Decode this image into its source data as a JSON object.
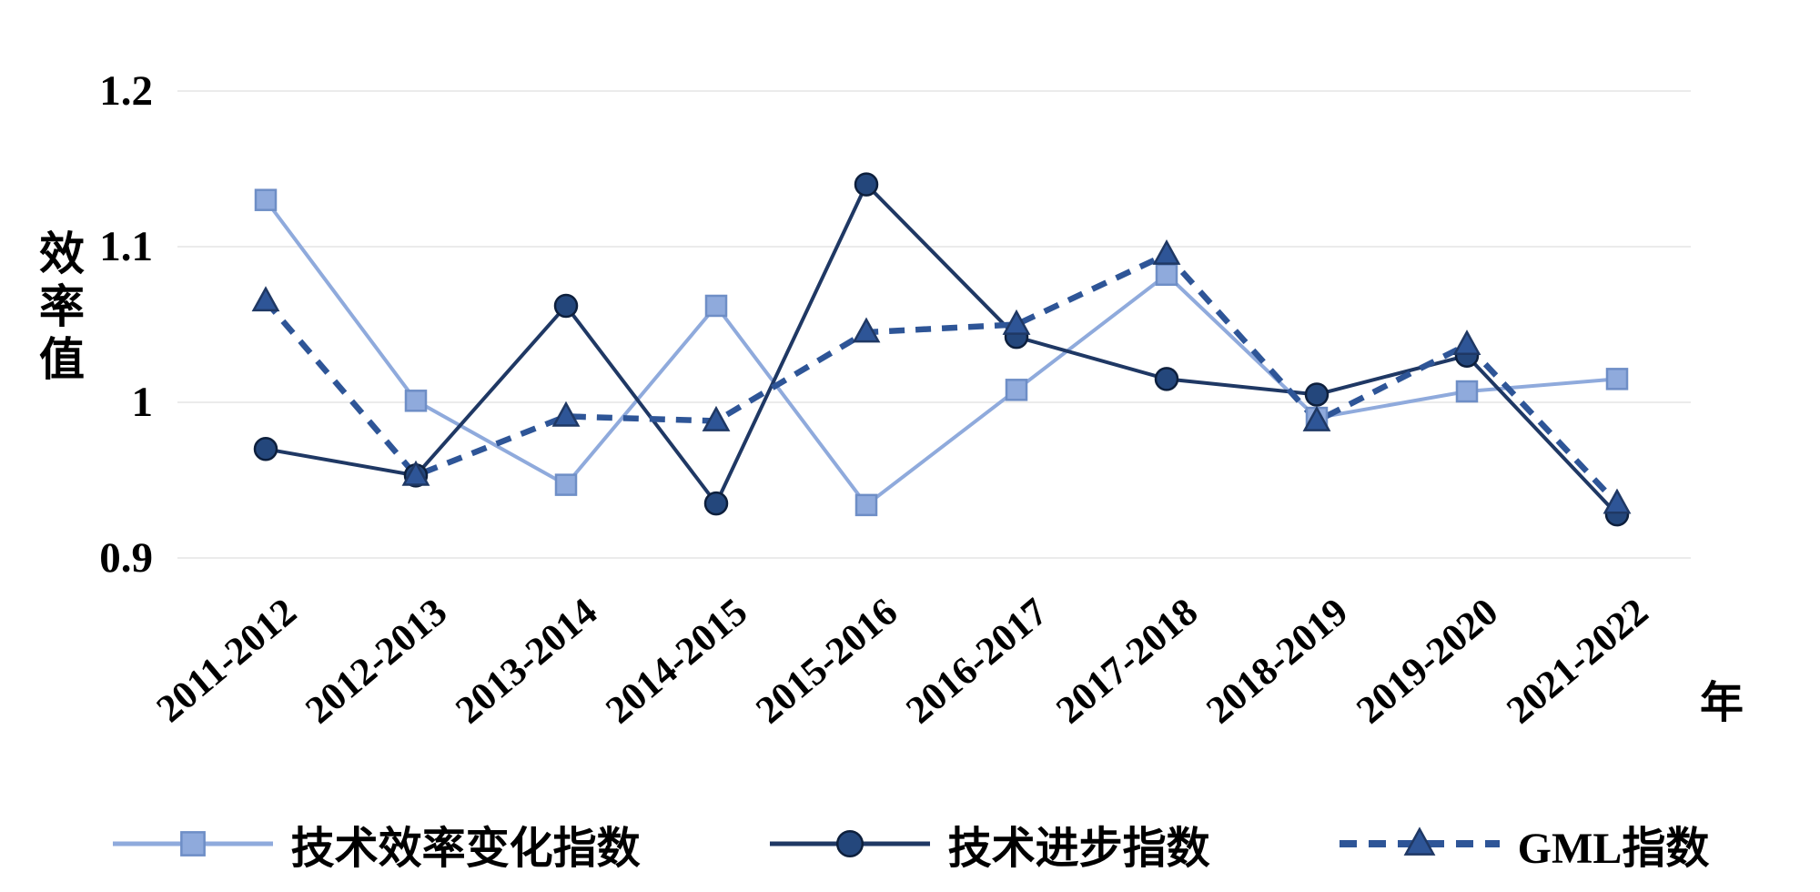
{
  "chart_data": {
    "type": "line",
    "title": "",
    "xlabel": "年",
    "ylabel": "效率值",
    "ylim": [
      0.9,
      1.2
    ],
    "yticks": [
      "0.9",
      "1",
      "1.1",
      "1.2"
    ],
    "grid": true,
    "legend_position": "bottom",
    "categories": [
      "2011-2012",
      "2012-2013",
      "2013-2014",
      "2014-2015",
      "2015-2016",
      "2016-2017",
      "2017-2018",
      "2018-2019",
      "2019-2020",
      "2021-2022"
    ],
    "series": [
      {
        "name": "技术效率变化指数",
        "marker": "square",
        "line_style": "solid",
        "color": "#8faadc",
        "marker_fill": "#8faadc",
        "marker_stroke": "#6e8ec6",
        "values": [
          1.13,
          1.001,
          0.947,
          1.062,
          0.934,
          1.008,
          1.082,
          0.99,
          1.007,
          1.015
        ]
      },
      {
        "name": "技术进步指数",
        "marker": "circle",
        "line_style": "solid",
        "color": "#1f3864",
        "marker_fill": "#24477c",
        "marker_stroke": "#0d1f3c",
        "values": [
          0.97,
          0.953,
          1.062,
          0.935,
          1.14,
          1.042,
          1.015,
          1.005,
          1.03,
          0.928
        ]
      },
      {
        "name": "GML指数",
        "marker": "triangle",
        "line_style": "dashed",
        "color": "#2e5597",
        "marker_fill": "#2e5597",
        "marker_stroke": "#1f3864",
        "values": [
          1.065,
          0.953,
          0.991,
          0.988,
          1.045,
          1.05,
          1.095,
          0.988,
          1.037,
          0.935
        ]
      }
    ]
  }
}
